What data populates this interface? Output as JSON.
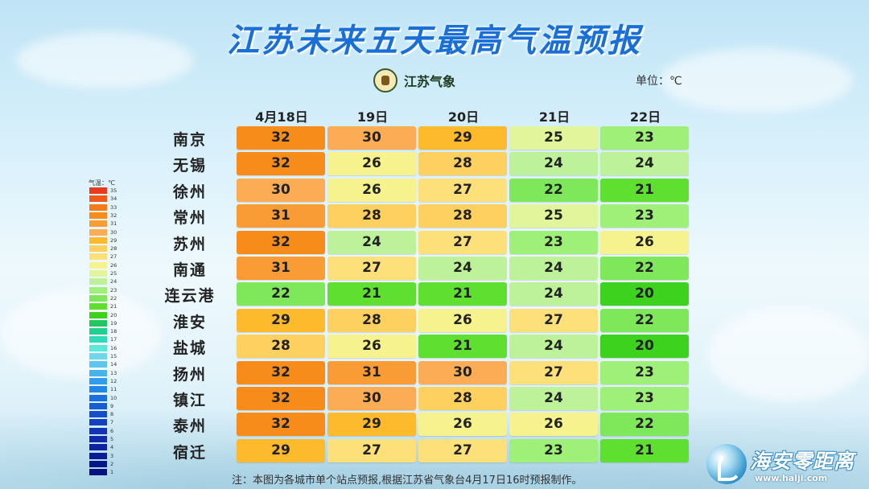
{
  "title": "江苏未来五天最高气温预报",
  "logo_text": "江苏气象",
  "unit_label": "单位：℃",
  "days": [
    "4月18日",
    "19日",
    "20日",
    "21日",
    "22日"
  ],
  "rows": [
    {
      "city": "南京",
      "values": [
        "32",
        "30",
        "29",
        "25",
        "23"
      ]
    },
    {
      "city": "无锡",
      "values": [
        "32",
        "26",
        "28",
        "24",
        "24"
      ]
    },
    {
      "city": "徐州",
      "values": [
        "30",
        "26",
        "27",
        "22",
        "21"
      ]
    },
    {
      "city": "常州",
      "values": [
        "31",
        "28",
        "28",
        "25",
        "23"
      ]
    },
    {
      "city": "苏州",
      "values": [
        "32",
        "24",
        "27",
        "23",
        "26"
      ]
    },
    {
      "city": "南通",
      "values": [
        "31",
        "27",
        "24",
        "24",
        "22"
      ]
    },
    {
      "city": "连云港",
      "values": [
        "22",
        "21",
        "21",
        "24",
        "20"
      ]
    },
    {
      "city": "淮安",
      "values": [
        "29",
        "28",
        "26",
        "27",
        "22"
      ]
    },
    {
      "city": "盐城",
      "values": [
        "28",
        "26",
        "21",
        "24",
        "20"
      ]
    },
    {
      "city": "扬州",
      "values": [
        "32",
        "31",
        "30",
        "27",
        "23"
      ]
    },
    {
      "city": "镇江",
      "values": [
        "32",
        "30",
        "28",
        "24",
        "23"
      ]
    },
    {
      "city": "泰州",
      "values": [
        "32",
        "29",
        "26",
        "26",
        "22"
      ]
    },
    {
      "city": "宿迁",
      "values": [
        "29",
        "27",
        "27",
        "23",
        "21"
      ]
    }
  ],
  "legend_title": "气温：℃",
  "legend": [
    {
      "label": "35",
      "color": "#e83a1e"
    },
    {
      "label": "34",
      "color": "#ef5a1c"
    },
    {
      "label": "33",
      "color": "#f57a18"
    },
    {
      "label": "32",
      "color": "#f78c1a"
    },
    {
      "label": "31",
      "color": "#f99c36"
    },
    {
      "label": "30",
      "color": "#fbac54"
    },
    {
      "label": "29",
      "color": "#fcba2c"
    },
    {
      "label": "28",
      "color": "#fdd060"
    },
    {
      "label": "27",
      "color": "#fde07a"
    },
    {
      "label": "26",
      "color": "#f6f28e"
    },
    {
      "label": "25",
      "color": "#e2f59a"
    },
    {
      "label": "24",
      "color": "#bdf29a"
    },
    {
      "label": "23",
      "color": "#9ff078"
    },
    {
      "label": "22",
      "color": "#7ee85a"
    },
    {
      "label": "21",
      "color": "#5fe030"
    },
    {
      "label": "20",
      "color": "#3cd21e"
    },
    {
      "label": "19",
      "color": "#20c860"
    },
    {
      "label": "18",
      "color": "#20d090"
    },
    {
      "label": "17",
      "color": "#30dcb8"
    },
    {
      "label": "16",
      "color": "#5ae8d8"
    },
    {
      "label": "15",
      "color": "#70d6ee"
    },
    {
      "label": "14",
      "color": "#5cc6ef"
    },
    {
      "label": "13",
      "color": "#46b2ee"
    },
    {
      "label": "12",
      "color": "#309cec"
    },
    {
      "label": "11",
      "color": "#2286e6"
    },
    {
      "label": "10",
      "color": "#1a70dc"
    },
    {
      "label": "9",
      "color": "#165ed2"
    },
    {
      "label": "8",
      "color": "#144ec8"
    },
    {
      "label": "7",
      "color": "#1240be"
    },
    {
      "label": "6",
      "color": "#1034b4"
    },
    {
      "label": "5",
      "color": "#0e2aaa"
    },
    {
      "label": "4",
      "color": "#0c22a0"
    },
    {
      "label": "3",
      "color": "#0a1c96"
    },
    {
      "label": "2",
      "color": "#08168c"
    },
    {
      "label": "1",
      "color": "#061282"
    }
  ],
  "note": "注：本图为各城市单个站点预报,根据江苏省气象台4月17日16时预报制作。",
  "watermark": {
    "name": "海安零距离",
    "url": "www.halji.com"
  }
}
